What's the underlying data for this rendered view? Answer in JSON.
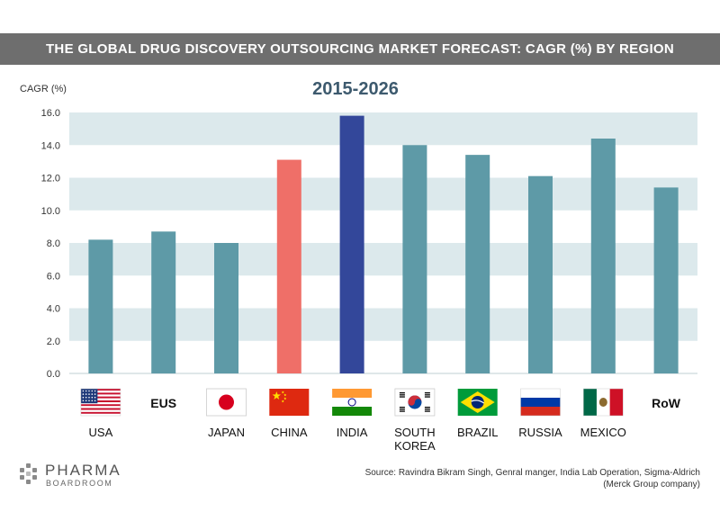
{
  "chart_data": {
    "type": "bar",
    "title": "THE GLOBAL DRUG DISCOVERY OUTSOURCING MARKET FORECAST: CAGR (%) BY REGION",
    "subtitle": "2015-2026",
    "ylabel": "CAGR (%)",
    "ylim": [
      0,
      16
    ],
    "yticks": [
      "0.0",
      "2.0",
      "4.0",
      "6.0",
      "8.0",
      "10.0",
      "12.0",
      "14.0",
      "16.0"
    ],
    "grid": "horizontal alternating bands",
    "categories": [
      {
        "label": "USA",
        "flag": "usa-flag",
        "color": "#5e9aa7"
      },
      {
        "label": "EUS",
        "flag": "",
        "color": "#5e9aa7"
      },
      {
        "label": "JAPAN",
        "flag": "japan-flag",
        "color": "#5e9aa7"
      },
      {
        "label": "CHINA",
        "flag": "china-flag",
        "color": "#ef6f68"
      },
      {
        "label": "INDIA",
        "flag": "india-flag",
        "color": "#33479a"
      },
      {
        "label": "SOUTH KOREA",
        "flag": "south-korea-flag",
        "color": "#5e9aa7"
      },
      {
        "label": "BRAZIL",
        "flag": "brazil-flag",
        "color": "#5e9aa7"
      },
      {
        "label": "RUSSIA",
        "flag": "russia-flag",
        "color": "#5e9aa7"
      },
      {
        "label": "MEXICO",
        "flag": "mexico-flag",
        "color": "#5e9aa7"
      },
      {
        "label": "RoW",
        "flag": "",
        "color": "#5e9aa7"
      }
    ],
    "values": [
      8.2,
      8.7,
      8.0,
      13.1,
      15.8,
      14.0,
      13.4,
      12.1,
      14.4,
      11.4
    ]
  },
  "footer": {
    "logo_line1": "PHARMA",
    "logo_line2": "BOARDROOM",
    "source_line1": "Source: Ravindra Bikram Singh, Genral manger, India Lab Operation, Sigma-Aldrich",
    "source_line2": "(Merck Group company)"
  },
  "colors": {
    "banner": "#6e6e6e",
    "band": "#dce9ec",
    "default_bar": "#5e9aa7",
    "china_bar": "#ef6f68",
    "india_bar": "#33479a"
  }
}
